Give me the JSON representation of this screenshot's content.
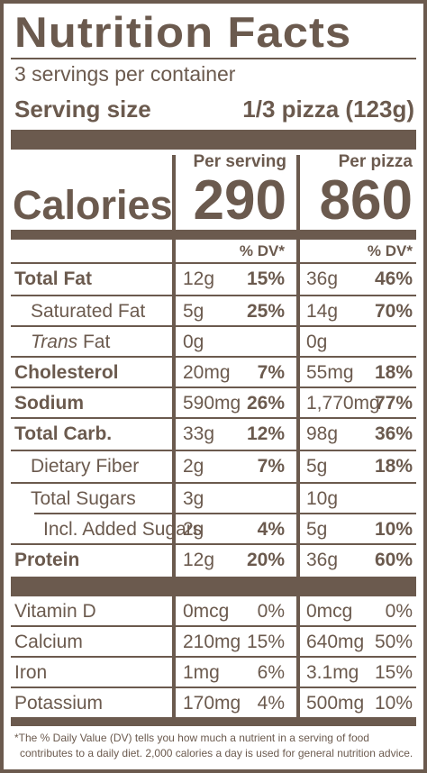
{
  "title": "Nutrition Facts",
  "servings_per_container": "3 servings per container",
  "serving_size_label": "Serving size",
  "serving_size_value": "1/3 pizza (123g)",
  "col1_header": "Per serving",
  "col2_header": "Per pizza",
  "calories_label": "Calories",
  "calories_per_serving": "290",
  "calories_per_pizza": "860",
  "dv_header_1": "% DV*",
  "dv_header_2": "% DV*",
  "nutrients": [
    {
      "name": "Total Fat",
      "amt1": "12g",
      "pct1": "15%",
      "amt2": "36g",
      "pct2": "46%"
    },
    {
      "name": "Saturated Fat",
      "amt1": "5g",
      "pct1": "25%",
      "amt2": "14g",
      "pct2": "70%"
    },
    {
      "name_italic": "Trans",
      "name_rest": " Fat",
      "amt1": "0g",
      "pct1": "",
      "amt2": "0g",
      "pct2": ""
    },
    {
      "name": "Cholesterol",
      "amt1": "20mg",
      "pct1": "7%",
      "amt2": "55mg",
      "pct2": "18%"
    },
    {
      "name": "Sodium",
      "amt1": "590mg",
      "pct1": "26%",
      "amt2": "1,770mg",
      "pct2": "77%"
    },
    {
      "name": "Total Carb.",
      "amt1": "33g",
      "pct1": "12%",
      "amt2": "98g",
      "pct2": "36%"
    },
    {
      "name": "Dietary Fiber",
      "amt1": "2g",
      "pct1": "7%",
      "amt2": "5g",
      "pct2": "18%"
    },
    {
      "name": "Total Sugars",
      "amt1": "3g",
      "pct1": "",
      "amt2": "10g",
      "pct2": ""
    },
    {
      "name": "Incl. Added Sugars",
      "amt1": "2g",
      "pct1": "4%",
      "amt2": "5g",
      "pct2": "10%"
    },
    {
      "name": "Protein",
      "amt1": "12g",
      "pct1": "20%",
      "amt2": "36g",
      "pct2": "60%"
    }
  ],
  "vitamins": [
    {
      "name": "Vitamin D",
      "amt1": "0mcg",
      "pct1": "0%",
      "amt2": "0mcg",
      "pct2": "0%"
    },
    {
      "name": "Calcium",
      "amt1": "210mg",
      "pct1": "15%",
      "amt2": "640mg",
      "pct2": "50%"
    },
    {
      "name": "Iron",
      "amt1": "1mg",
      "pct1": "6%",
      "amt2": "3.1mg",
      "pct2": "15%"
    },
    {
      "name": "Potassium",
      "amt1": "170mg",
      "pct1": "4%",
      "amt2": "500mg",
      "pct2": "10%"
    }
  ],
  "footnote_line1": "*The % Daily Value (DV) tells you how much a nutrient in a serving of food",
  "footnote_line2": "contributes to a daily diet. 2,000 calories a day is used for general nutrition advice.",
  "colors": {
    "ink": "#6b5a4e",
    "background": "#ffffff"
  }
}
